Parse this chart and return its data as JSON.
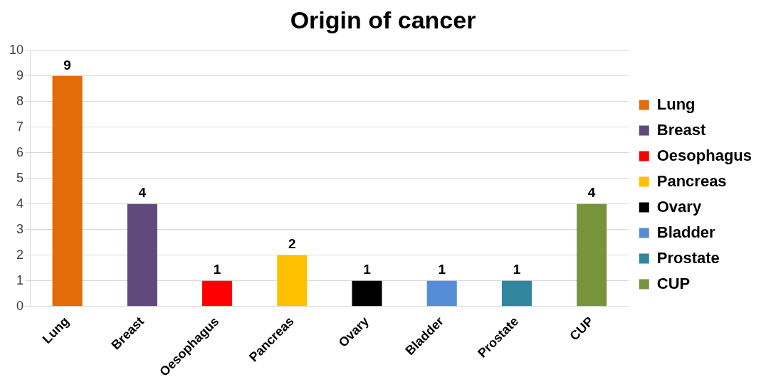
{
  "chart_data": {
    "type": "bar",
    "title": "Origin of cancer",
    "categories": [
      "Lung",
      "Breast",
      "Oesophagus",
      "Pancreas",
      "Ovary",
      "Bladder",
      "Prostate",
      "CUP"
    ],
    "series": [
      {
        "name": "Lung",
        "color": "#e36c09",
        "values": [
          9,
          null,
          null,
          null,
          null,
          null,
          null,
          null
        ]
      },
      {
        "name": "Breast",
        "color": "#604a7b",
        "values": [
          null,
          4,
          null,
          null,
          null,
          null,
          null,
          null
        ]
      },
      {
        "name": "Oesophagus",
        "color": "#ff0000",
        "values": [
          null,
          null,
          1,
          null,
          null,
          null,
          null,
          null
        ]
      },
      {
        "name": "Pancreas",
        "color": "#ffc000",
        "values": [
          null,
          null,
          null,
          2,
          null,
          null,
          null,
          null
        ]
      },
      {
        "name": "Ovary",
        "color": "#000000",
        "values": [
          null,
          null,
          null,
          null,
          1,
          null,
          null,
          null
        ]
      },
      {
        "name": "Bladder",
        "color": "#558ed5",
        "values": [
          null,
          null,
          null,
          null,
          null,
          1,
          null,
          null
        ]
      },
      {
        "name": "Prostate",
        "color": "#31859c",
        "values": [
          null,
          null,
          null,
          null,
          null,
          null,
          1,
          null
        ]
      },
      {
        "name": "CUP",
        "color": "#77933c",
        "values": [
          null,
          null,
          null,
          null,
          null,
          null,
          null,
          4
        ]
      }
    ],
    "ylim": [
      0,
      10
    ],
    "yticks": [
      0,
      1,
      2,
      3,
      4,
      5,
      6,
      7,
      8,
      9,
      10
    ],
    "grid": "y",
    "data_labels": true,
    "legend": "right"
  }
}
